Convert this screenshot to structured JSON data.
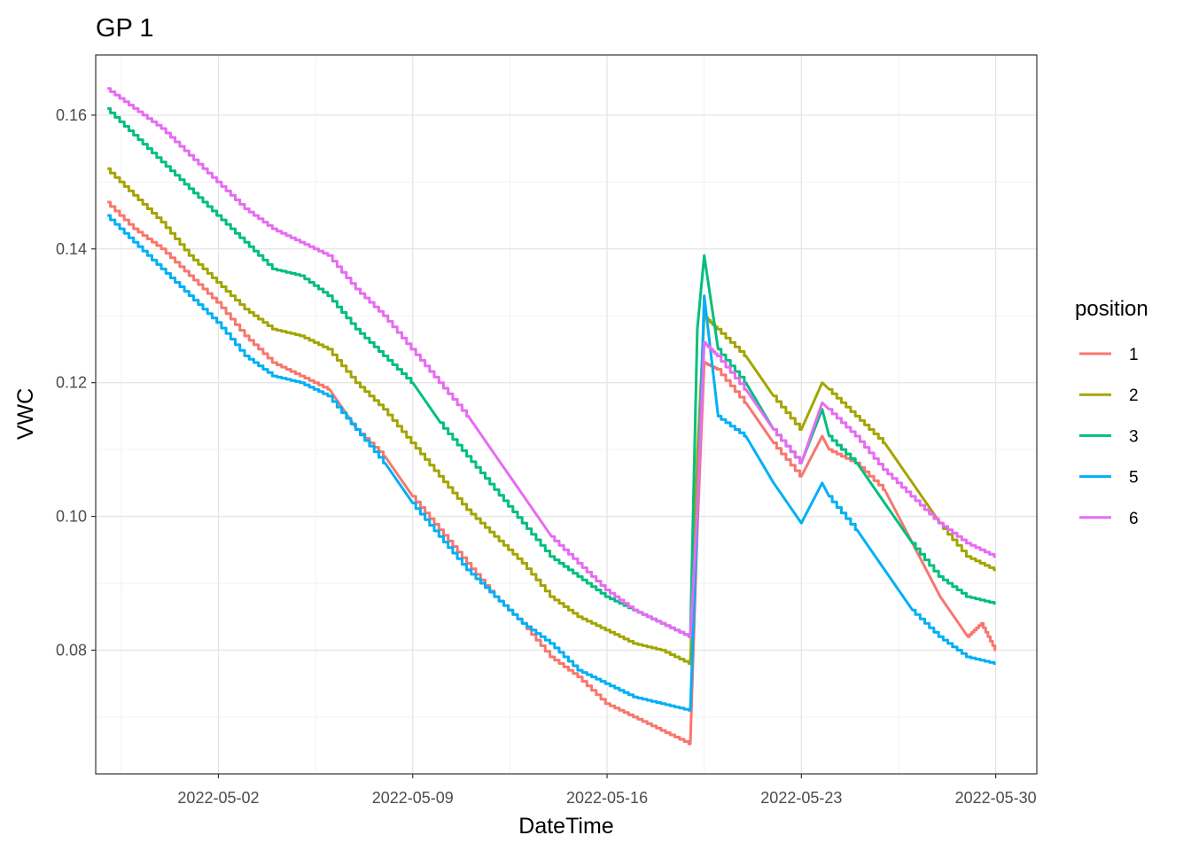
{
  "chart_data": {
    "type": "line",
    "title": "GP 1",
    "xlabel": "DateTime",
    "ylabel": "VWC",
    "x_ticks": [
      "2022-05-02",
      "2022-05-09",
      "2022-05-16",
      "2022-05-23",
      "2022-05-30"
    ],
    "y_ticks": [
      "0.08",
      "0.10",
      "0.12",
      "0.14",
      "0.16"
    ],
    "xlim": [
      "2022-04-27",
      "2022-05-31"
    ],
    "ylim": [
      0.0615,
      0.169
    ],
    "grid": true,
    "legend": {
      "title": "position",
      "placement": "right"
    },
    "series": [
      {
        "name": "1",
        "color": "#F8766D",
        "x": [
          "2022-04-28",
          "2022-04-29",
          "2022-04-30",
          "2022-05-01",
          "2022-05-02",
          "2022-05-03",
          "2022-05-04",
          "2022-05-05",
          "2022-05-06",
          "2022-05-07",
          "2022-05-08",
          "2022-05-09",
          "2022-05-10",
          "2022-05-11",
          "2022-05-12",
          "2022-05-13",
          "2022-05-14",
          "2022-05-15",
          "2022-05-16",
          "2022-05-17",
          "2022-05-18",
          "2022-05-19 00:00",
          "2022-05-19 06:00",
          "2022-05-19 12:00",
          "2022-05-20",
          "2022-05-21",
          "2022-05-22",
          "2022-05-23",
          "2022-05-23 18:00",
          "2022-05-24",
          "2022-05-25",
          "2022-05-26",
          "2022-05-27",
          "2022-05-28",
          "2022-05-29",
          "2022-05-29 12:00",
          "2022-05-30"
        ],
        "y": [
          0.147,
          0.143,
          0.14,
          0.136,
          0.132,
          0.127,
          0.123,
          0.121,
          0.119,
          0.113,
          0.109,
          0.103,
          0.098,
          0.093,
          0.088,
          0.084,
          0.079,
          0.076,
          0.072,
          0.07,
          0.068,
          0.066,
          0.098,
          0.123,
          0.122,
          0.117,
          0.111,
          0.106,
          0.112,
          0.11,
          0.108,
          0.104,
          0.096,
          0.088,
          0.082,
          0.084,
          0.08
        ]
      },
      {
        "name": "2",
        "color": "#A3A500",
        "x": [
          "2022-04-28",
          "2022-04-29",
          "2022-04-30",
          "2022-05-01",
          "2022-05-02",
          "2022-05-03",
          "2022-05-04",
          "2022-05-05",
          "2022-05-06",
          "2022-05-07",
          "2022-05-08",
          "2022-05-09",
          "2022-05-10",
          "2022-05-11",
          "2022-05-12",
          "2022-05-13",
          "2022-05-14",
          "2022-05-15",
          "2022-05-16",
          "2022-05-17",
          "2022-05-18",
          "2022-05-19 00:00",
          "2022-05-19 06:00",
          "2022-05-19 12:00",
          "2022-05-20",
          "2022-05-21",
          "2022-05-22",
          "2022-05-23",
          "2022-05-23 18:00",
          "2022-05-24",
          "2022-05-25",
          "2022-05-26",
          "2022-05-27",
          "2022-05-28",
          "2022-05-29",
          "2022-05-30"
        ],
        "y": [
          0.152,
          0.148,
          0.144,
          0.139,
          0.135,
          0.131,
          0.128,
          0.127,
          0.125,
          0.12,
          0.116,
          0.111,
          0.106,
          0.101,
          0.097,
          0.093,
          0.088,
          0.085,
          0.083,
          0.081,
          0.08,
          0.078,
          0.109,
          0.13,
          0.128,
          0.124,
          0.118,
          0.113,
          0.12,
          0.119,
          0.115,
          0.111,
          0.105,
          0.099,
          0.094,
          0.092
        ]
      },
      {
        "name": "3",
        "color": "#00BF7D",
        "x": [
          "2022-04-28",
          "2022-04-29",
          "2022-04-30",
          "2022-05-01",
          "2022-05-02",
          "2022-05-03",
          "2022-05-04",
          "2022-05-05",
          "2022-05-06",
          "2022-05-07",
          "2022-05-08",
          "2022-05-09",
          "2022-05-10",
          "2022-05-11",
          "2022-05-12",
          "2022-05-13",
          "2022-05-14",
          "2022-05-15",
          "2022-05-16",
          "2022-05-17",
          "2022-05-18",
          "2022-05-19 00:00",
          "2022-05-19 06:00",
          "2022-05-19 12:00",
          "2022-05-20",
          "2022-05-21",
          "2022-05-22",
          "2022-05-23",
          "2022-05-23 18:00",
          "2022-05-24",
          "2022-05-25",
          "2022-05-26",
          "2022-05-27",
          "2022-05-28",
          "2022-05-29",
          "2022-05-30"
        ],
        "y": [
          0.161,
          0.157,
          0.153,
          0.149,
          0.145,
          0.141,
          0.137,
          0.136,
          0.133,
          0.128,
          0.124,
          0.12,
          0.114,
          0.109,
          0.104,
          0.099,
          0.094,
          0.091,
          0.088,
          0.086,
          0.084,
          0.082,
          0.128,
          0.139,
          0.125,
          0.12,
          0.113,
          0.108,
          0.116,
          0.112,
          0.108,
          0.102,
          0.096,
          0.091,
          0.088,
          0.087
        ]
      },
      {
        "name": "5",
        "color": "#00B0F6",
        "x": [
          "2022-04-28",
          "2022-04-29",
          "2022-04-30",
          "2022-05-01",
          "2022-05-02",
          "2022-05-03",
          "2022-05-04",
          "2022-05-05",
          "2022-05-06",
          "2022-05-07",
          "2022-05-08",
          "2022-05-09",
          "2022-05-10",
          "2022-05-11",
          "2022-05-12",
          "2022-05-13",
          "2022-05-14",
          "2022-05-15",
          "2022-05-16",
          "2022-05-17",
          "2022-05-18",
          "2022-05-19 00:00",
          "2022-05-19 06:00",
          "2022-05-19 12:00",
          "2022-05-20",
          "2022-05-21",
          "2022-05-22",
          "2022-05-23",
          "2022-05-23 18:00",
          "2022-05-24",
          "2022-05-25",
          "2022-05-26",
          "2022-05-27",
          "2022-05-28",
          "2022-05-29",
          "2022-05-30"
        ],
        "y": [
          0.145,
          0.141,
          0.137,
          0.133,
          0.129,
          0.124,
          0.121,
          0.12,
          0.118,
          0.113,
          0.108,
          0.102,
          0.097,
          0.092,
          0.088,
          0.084,
          0.081,
          0.077,
          0.075,
          0.073,
          0.072,
          0.071,
          0.1,
          0.133,
          0.115,
          0.112,
          0.105,
          0.099,
          0.105,
          0.103,
          0.098,
          0.092,
          0.086,
          0.082,
          0.079,
          0.078
        ]
      },
      {
        "name": "6",
        "color": "#E76BF3",
        "x": [
          "2022-04-28",
          "2022-04-29",
          "2022-04-30",
          "2022-05-01",
          "2022-05-02",
          "2022-05-03",
          "2022-05-04",
          "2022-05-05",
          "2022-05-06",
          "2022-05-07",
          "2022-05-08",
          "2022-05-09",
          "2022-05-10",
          "2022-05-11",
          "2022-05-12",
          "2022-05-13",
          "2022-05-14",
          "2022-05-15",
          "2022-05-16",
          "2022-05-17",
          "2022-05-18",
          "2022-05-19 00:00",
          "2022-05-19 06:00",
          "2022-05-19 12:00",
          "2022-05-20",
          "2022-05-21",
          "2022-05-22",
          "2022-05-23",
          "2022-05-23 18:00",
          "2022-05-24",
          "2022-05-25",
          "2022-05-26",
          "2022-05-27",
          "2022-05-28",
          "2022-05-29",
          "2022-05-30"
        ],
        "y": [
          0.164,
          0.161,
          0.158,
          0.154,
          0.15,
          0.146,
          0.143,
          0.141,
          0.139,
          0.134,
          0.13,
          0.125,
          0.12,
          0.115,
          0.109,
          0.103,
          0.097,
          0.093,
          0.089,
          0.086,
          0.084,
          0.082,
          0.101,
          0.126,
          0.124,
          0.119,
          0.113,
          0.108,
          0.117,
          0.116,
          0.112,
          0.107,
          0.103,
          0.099,
          0.096,
          0.094
        ]
      }
    ]
  }
}
